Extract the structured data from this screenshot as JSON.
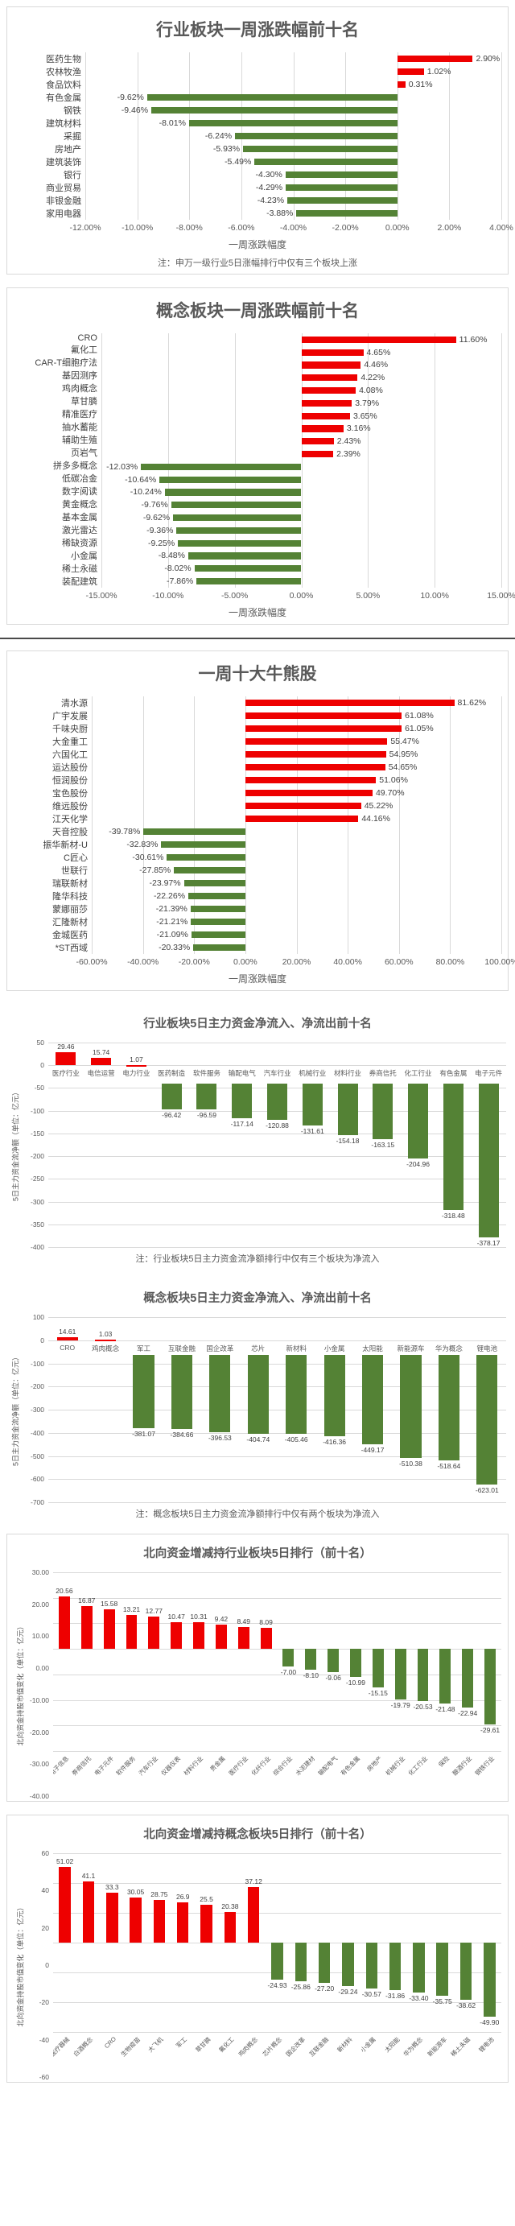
{
  "colors": {
    "positive": "#ee0000",
    "negative": "#548235",
    "grid": "#d9d9d9",
    "title": "#595959",
    "card_border": "#d9d9d9"
  },
  "chart_data": [
    {
      "id": "industry-week-change",
      "type": "bar",
      "orientation": "horizontal",
      "title": "行业板块一周涨跌幅前十名",
      "xlabel": "一周涨跌幅度",
      "note": "注：申万一级行业5日涨幅排行中仅有三个板块上涨",
      "axis": {
        "min": -12,
        "max": 4,
        "ticks": [
          {
            "v": -12,
            "label": "-12.00%"
          },
          {
            "v": -10,
            "label": "-10.00%"
          },
          {
            "v": -8,
            "label": "-8.00%"
          },
          {
            "v": -6,
            "label": "-6.00%"
          },
          {
            "v": -4,
            "label": "-4.00%"
          },
          {
            "v": -2,
            "label": "-2.00%"
          },
          {
            "v": 0,
            "label": "0.00%"
          },
          {
            "v": 2,
            "label": "2.00%"
          },
          {
            "v": 4,
            "label": "4.00%"
          }
        ]
      },
      "categories": [
        "医药生物",
        "农林牧渔",
        "食品饮料",
        "有色金属",
        "钢铁",
        "建筑材料",
        "采掘",
        "房地产",
        "建筑装饰",
        "银行",
        "商业贸易",
        "非银金融",
        "家用电器"
      ],
      "values": [
        2.9,
        1.02,
        0.31,
        -9.62,
        -9.46,
        -8.01,
        -6.24,
        -5.93,
        -5.49,
        -4.3,
        -4.29,
        -4.23,
        -3.88
      ],
      "labels": [
        "2.90%",
        "1.02%",
        "0.31%",
        "-9.62%",
        "-9.46%",
        "-8.01%",
        "-6.24%",
        "-5.93%",
        "-5.49%",
        "-4.30%",
        "-4.29%",
        "-4.23%",
        "-3.88%"
      ]
    },
    {
      "id": "concept-week-change",
      "type": "bar",
      "orientation": "horizontal",
      "title": "概念板块一周涨跌幅前十名",
      "xlabel": "一周涨跌幅度",
      "axis": {
        "min": -15,
        "max": 15,
        "ticks": [
          {
            "v": -15,
            "label": "-15.00%"
          },
          {
            "v": -10,
            "label": "-10.00%"
          },
          {
            "v": -5,
            "label": "-5.00%"
          },
          {
            "v": 0,
            "label": "0.00%"
          },
          {
            "v": 5,
            "label": "5.00%"
          },
          {
            "v": 10,
            "label": "10.00%"
          },
          {
            "v": 15,
            "label": "15.00%"
          }
        ]
      },
      "categories": [
        "CRO",
        "氟化工",
        "CAR-T细胞疗法",
        "基因测序",
        "鸡肉概念",
        "草甘膦",
        "精准医疗",
        "抽水蓄能",
        "辅助生殖",
        "页岩气",
        "拼多多概念",
        "低碳冶金",
        "数字阅读",
        "黄金概念",
        "基本金属",
        "激光雷达",
        "稀缺资源",
        "小金属",
        "稀土永磁",
        "装配建筑"
      ],
      "values": [
        11.6,
        4.65,
        4.46,
        4.22,
        4.08,
        3.79,
        3.65,
        3.16,
        2.43,
        2.39,
        -12.03,
        -10.64,
        -10.24,
        -9.76,
        -9.62,
        -9.36,
        -9.25,
        -8.48,
        -8.02,
        -7.86
      ],
      "labels": [
        "11.60%",
        "4.65%",
        "4.46%",
        "4.22%",
        "4.08%",
        "3.79%",
        "3.65%",
        "3.16%",
        "2.43%",
        "2.39%",
        "-12.03%",
        "-10.64%",
        "-10.24%",
        "-9.76%",
        "-9.62%",
        "-9.36%",
        "-9.25%",
        "-8.48%",
        "-8.02%",
        "-7.86%"
      ]
    },
    {
      "id": "week-top-bull-bear-stocks",
      "type": "bar",
      "orientation": "horizontal",
      "title": "一周十大牛熊股",
      "xlabel": "一周涨跌幅度",
      "axis": {
        "min": -60,
        "max": 100,
        "ticks": [
          {
            "v": -60,
            "label": "-60.00%"
          },
          {
            "v": -40,
            "label": "-40.00%"
          },
          {
            "v": -20,
            "label": "-20.00%"
          },
          {
            "v": 0,
            "label": "0.00%"
          },
          {
            "v": 20,
            "label": "20.00%"
          },
          {
            "v": 40,
            "label": "40.00%"
          },
          {
            "v": 60,
            "label": "60.00%"
          },
          {
            "v": 80,
            "label": "80.00%"
          },
          {
            "v": 100,
            "label": "100.00%"
          }
        ]
      },
      "categories": [
        "清水源",
        "广宇发展",
        "千味央厨",
        "大金重工",
        "六国化工",
        "运达股份",
        "恒润股份",
        "宝色股份",
        "维远股份",
        "江天化学",
        "天音控股",
        "振华新材-U",
        "C匠心",
        "世联行",
        "瑞联新材",
        "隆华科技",
        "蒙娜丽莎",
        "汇隆新材",
        "金城医药",
        "*ST西域"
      ],
      "values": [
        81.62,
        61.08,
        61.05,
        55.47,
        54.95,
        54.65,
        51.06,
        49.7,
        45.22,
        44.16,
        -39.78,
        -32.83,
        -30.61,
        -27.85,
        -23.97,
        -22.26,
        -21.39,
        -21.21,
        -21.09,
        -20.33
      ],
      "labels": [
        "81.62%",
        "61.08%",
        "61.05%",
        "55.47%",
        "54.95%",
        "54.65%",
        "51.06%",
        "49.70%",
        "45.22%",
        "44.16%",
        "-39.78%",
        "-32.83%",
        "-30.61%",
        "-27.85%",
        "-23.97%",
        "-22.26%",
        "-21.39%",
        "-21.21%",
        "-21.09%",
        "-20.33%"
      ]
    },
    {
      "id": "industry-5d-main-funds",
      "type": "bar",
      "orientation": "vertical",
      "title": "行业板块5日主力资金净流入、净流出前十名",
      "ylabel": "5日主力资金流净额（单位：亿元）",
      "note": "注：行业板块5日主力资金流净额排行中仅有三个板块为净流入",
      "cat_position": "zero",
      "label_strip": 9,
      "bar_width_pct": 4.4,
      "axis": {
        "min": -400,
        "max": 50,
        "ticks": [
          {
            "v": 50,
            "label": "50"
          },
          {
            "v": 0,
            "label": "0"
          },
          {
            "v": -50,
            "label": "-50"
          },
          {
            "v": -100,
            "label": "-100"
          },
          {
            "v": -150,
            "label": "-150"
          },
          {
            "v": -200,
            "label": "-200"
          },
          {
            "v": -250,
            "label": "-250"
          },
          {
            "v": -300,
            "label": "-300"
          },
          {
            "v": -350,
            "label": "-350"
          },
          {
            "v": -400,
            "label": "-400"
          }
        ]
      },
      "categories": [
        "医疗行业",
        "电信运营",
        "电力行业",
        "医药制造",
        "软件服务",
        "输配电气",
        "汽车行业",
        "机械行业",
        "材料行业",
        "券商信托",
        "化工行业",
        "有色金属",
        "电子元件"
      ],
      "values": [
        29.46,
        15.74,
        1.07,
        -96.42,
        -96.59,
        -117.14,
        -120.88,
        -131.61,
        -154.18,
        -163.15,
        -204.96,
        -318.48,
        -378.17
      ],
      "labels": [
        "29.46",
        "15.74",
        "1.07",
        "-96.42",
        "-96.59",
        "-117.14",
        "-120.88",
        "-131.61",
        "-154.18",
        "-163.15",
        "-204.96",
        "-318.48",
        "-378.17"
      ]
    },
    {
      "id": "concept-5d-main-funds",
      "type": "bar",
      "orientation": "vertical",
      "title": "概念板块5日主力资金净流入、净流出前十名",
      "ylabel": "5日主力资金流净额（单位：亿元）",
      "note": "注：概念板块5日主力资金流净额排行中仅有两个板块为净流入",
      "cat_position": "zero",
      "label_strip": 8,
      "bar_width_pct": 4.6,
      "axis": {
        "min": -700,
        "max": 100,
        "ticks": [
          {
            "v": 100,
            "label": "100"
          },
          {
            "v": 0,
            "label": "0"
          },
          {
            "v": -100,
            "label": "-100"
          },
          {
            "v": -200,
            "label": "-200"
          },
          {
            "v": -300,
            "label": "-300"
          },
          {
            "v": -400,
            "label": "-400"
          },
          {
            "v": -500,
            "label": "-500"
          },
          {
            "v": -600,
            "label": "-600"
          },
          {
            "v": -700,
            "label": "-700"
          }
        ]
      },
      "categories": [
        "CRO",
        "鸡肉概念",
        "军工",
        "互联金融",
        "国企改革",
        "芯片",
        "新材料",
        "小金属",
        "太阳能",
        "新能源车",
        "华为概念",
        "锂电池"
      ],
      "values": [
        14.61,
        1.03,
        -381.07,
        -384.66,
        -396.53,
        -404.74,
        -405.46,
        -416.36,
        -449.17,
        -510.38,
        -518.64,
        -623.01
      ],
      "labels": [
        "14.61",
        "1.03",
        "-381.07",
        "-384.66",
        "-396.53",
        "-404.74",
        "-405.46",
        "-416.36",
        "-449.17",
        "-510.38",
        "-518.64",
        "-623.01"
      ]
    },
    {
      "id": "northbound-industry-5d",
      "type": "bar",
      "orientation": "vertical",
      "title": "北向资金增减持行业板块5日排行（前十名）",
      "ylabel": "北向资金持股市值变化（单位：亿元）",
      "cat_position": "bottom-rotated",
      "label_strip": 0,
      "bar_width_pct": 2.5,
      "axis": {
        "min": -40,
        "max": 30,
        "ticks": [
          {
            "v": 30,
            "label": "30.00"
          },
          {
            "v": 20,
            "label": "20.00"
          },
          {
            "v": 10,
            "label": "10.00"
          },
          {
            "v": 0,
            "label": "0.00"
          },
          {
            "v": -10,
            "label": "-10.00"
          },
          {
            "v": -20,
            "label": "-20.00"
          },
          {
            "v": -30,
            "label": "-30.00"
          },
          {
            "v": -40,
            "label": "-40.00"
          }
        ]
      },
      "categories": [
        "电子信息",
        "券商信托",
        "电子元件",
        "软件服务",
        "汽车行业",
        "仪器仪表",
        "材料行业",
        "贵金属",
        "医疗行业",
        "化纤行业",
        "综合行业",
        "水泥建材",
        "输配电气",
        "有色金属",
        "房地产",
        "机械行业",
        "化工行业",
        "保险",
        "酿酒行业",
        "钢铁行业"
      ],
      "values": [
        20.56,
        16.87,
        15.58,
        13.21,
        12.77,
        10.47,
        10.31,
        9.42,
        8.49,
        8.09,
        -7.0,
        -8.1,
        -9.06,
        -10.99,
        -15.15,
        -19.79,
        -20.53,
        -21.48,
        -22.94,
        -29.61
      ],
      "labels": [
        "20.56",
        "16.87",
        "15.58",
        "13.21",
        "12.77",
        "10.47",
        "10.31",
        "9.42",
        "8.49",
        "8.09",
        "-7.00",
        "-8.10",
        "-9.06",
        "-10.99",
        "-15.15",
        "-19.79",
        "-20.53",
        "-21.48",
        "-22.94",
        "-29.61"
      ]
    },
    {
      "id": "northbound-concept-5d",
      "type": "bar",
      "orientation": "vertical",
      "title": "北向资金增减持概念板块5日排行（前十名）",
      "ylabel": "北向资金持股市值变化（单位：亿元）",
      "cat_position": "bottom-rotated",
      "label_strip": 0,
      "bar_width_pct": 2.6,
      "axis": {
        "min": -60,
        "max": 60,
        "ticks": [
          {
            "v": 60,
            "label": "60"
          },
          {
            "v": 40,
            "label": "40"
          },
          {
            "v": 20,
            "label": "20"
          },
          {
            "v": 0,
            "label": "0"
          },
          {
            "v": -20,
            "label": "-20"
          },
          {
            "v": -40,
            "label": "-40"
          },
          {
            "v": -60,
            "label": "-60"
          }
        ]
      },
      "categories": [
        "医疗器械",
        "白酒概念",
        "CRO",
        "生物疫苗",
        "大飞机",
        "军工",
        "草甘膦",
        "氟化工",
        "鸡肉概念",
        "芯片概念",
        "国企改革",
        "互联金融",
        "新材料",
        "小金属",
        "太阳能",
        "华为概念",
        "新能源车",
        "稀土永磁",
        "锂电池"
      ],
      "values": [
        51.02,
        41.1,
        33.3,
        30.05,
        28.75,
        26.9,
        25.5,
        20.38,
        37.12,
        -24.93,
        -25.86,
        -27.2,
        -29.24,
        -30.57,
        -31.86,
        -33.4,
        -35.75,
        -38.62,
        -49.9
      ],
      "labels": [
        "51.02",
        "41.1",
        "33.3",
        "30.05",
        "28.75",
        "26.9",
        "25.5",
        "20.38",
        "37.12",
        "-24.93",
        "-25.86",
        "-27.20",
        "-29.24",
        "-30.57",
        "-31.86",
        "-33.40",
        "-35.75",
        "-38.62",
        "-49.90"
      ]
    }
  ]
}
